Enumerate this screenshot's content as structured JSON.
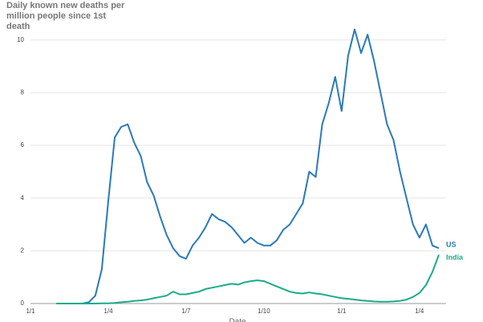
{
  "chart_data": {
    "type": "line",
    "title": "Daily known new deaths per million people since 1st death",
    "x_label": "Date",
    "categories": [
      "1/1",
      null,
      null,
      null,
      null,
      null,
      null,
      null,
      null,
      null,
      null,
      null,
      "1/4",
      null,
      null,
      null,
      null,
      null,
      null,
      null,
      null,
      null,
      null,
      null,
      "1/7",
      null,
      null,
      null,
      null,
      null,
      null,
      null,
      null,
      null,
      null,
      null,
      "1/10",
      null,
      null,
      null,
      null,
      null,
      null,
      null,
      null,
      null,
      null,
      null,
      "1/1",
      null,
      null,
      null,
      null,
      null,
      null,
      null,
      null,
      null,
      null,
      null,
      "1/4",
      null,
      null,
      null
    ],
    "series": [
      {
        "name": "US",
        "color": "#2a7ab8",
        "values": [
          null,
          null,
          null,
          null,
          0,
          0,
          0,
          0,
          0,
          0.05,
          0.3,
          1.3,
          3.9,
          6.3,
          6.7,
          6.8,
          6.1,
          5.6,
          4.6,
          4.1,
          3.3,
          2.6,
          2.1,
          1.8,
          1.7,
          2.2,
          2.5,
          2.9,
          3.4,
          3.2,
          3.1,
          2.9,
          2.6,
          2.3,
          2.5,
          2.3,
          2.2,
          2.2,
          2.4,
          2.8,
          3.0,
          3.4,
          3.8,
          5.0,
          4.8,
          6.8,
          7.6,
          8.6,
          7.3,
          9.4,
          10.4,
          9.5,
          10.2,
          9.2,
          8.0,
          6.8,
          6.2,
          5.0,
          4.0,
          3.0,
          2.5,
          3.0,
          2.2,
          2.1
        ]
      },
      {
        "name": "India",
        "color": "#1aab8a",
        "values": [
          null,
          null,
          null,
          null,
          0,
          0,
          0,
          0,
          0,
          0,
          0,
          0.01,
          0.01,
          0.02,
          0.05,
          0.07,
          0.1,
          0.12,
          0.15,
          0.2,
          0.25,
          0.3,
          0.45,
          0.35,
          0.35,
          0.4,
          0.45,
          0.55,
          0.6,
          0.65,
          0.7,
          0.75,
          0.72,
          0.8,
          0.85,
          0.88,
          0.85,
          0.75,
          0.65,
          0.55,
          0.45,
          0.4,
          0.38,
          0.42,
          0.38,
          0.35,
          0.3,
          0.25,
          0.2,
          0.18,
          0.15,
          0.12,
          0.1,
          0.08,
          0.07,
          0.07,
          0.08,
          0.1,
          0.15,
          0.25,
          0.4,
          0.7,
          1.2,
          1.85
        ]
      }
    ],
    "ylim": [
      0,
      10.6
    ],
    "yticks": [
      0,
      2,
      4,
      6,
      8,
      10
    ],
    "grid": true
  }
}
